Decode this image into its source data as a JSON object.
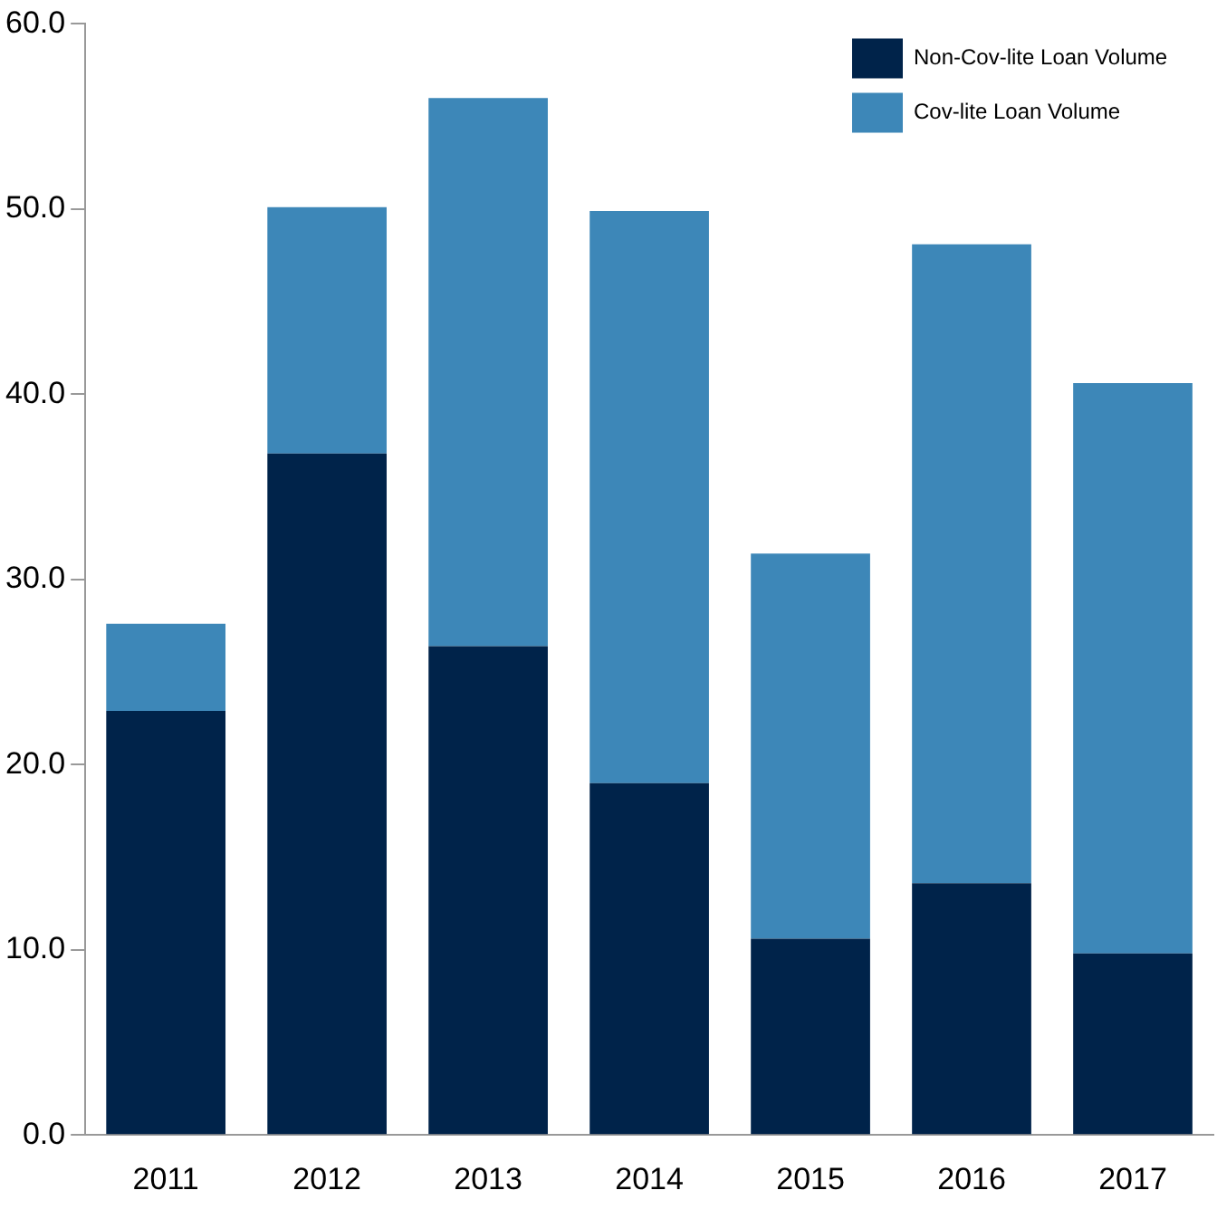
{
  "chart_data": {
    "type": "bar",
    "stacked": true,
    "categories": [
      "2011",
      "2012",
      "2013",
      "2014",
      "2015",
      "2016",
      "2017"
    ],
    "series": [
      {
        "name": "Non-Cov-lite Loan Volume",
        "color": "#00234a",
        "values": [
          22.9,
          36.8,
          26.4,
          19.0,
          10.6,
          13.6,
          9.8
        ]
      },
      {
        "name": "Cov-lite Loan Volume",
        "color": "#3d87b8",
        "values": [
          4.7,
          13.3,
          29.6,
          30.9,
          20.8,
          34.5,
          30.8
        ]
      }
    ],
    "ylim": [
      0,
      60
    ],
    "yticks": [
      {
        "value": 0,
        "label": "0.0"
      },
      {
        "value": 10,
        "label": "10.0"
      },
      {
        "value": 20,
        "label": "20.0"
      },
      {
        "value": 30,
        "label": "30.0"
      },
      {
        "value": 40,
        "label": "40.0"
      },
      {
        "value": 50,
        "label": "50.0"
      },
      {
        "value": 60,
        "label": "60.0"
      }
    ],
    "grid": false,
    "legend": "top right"
  }
}
